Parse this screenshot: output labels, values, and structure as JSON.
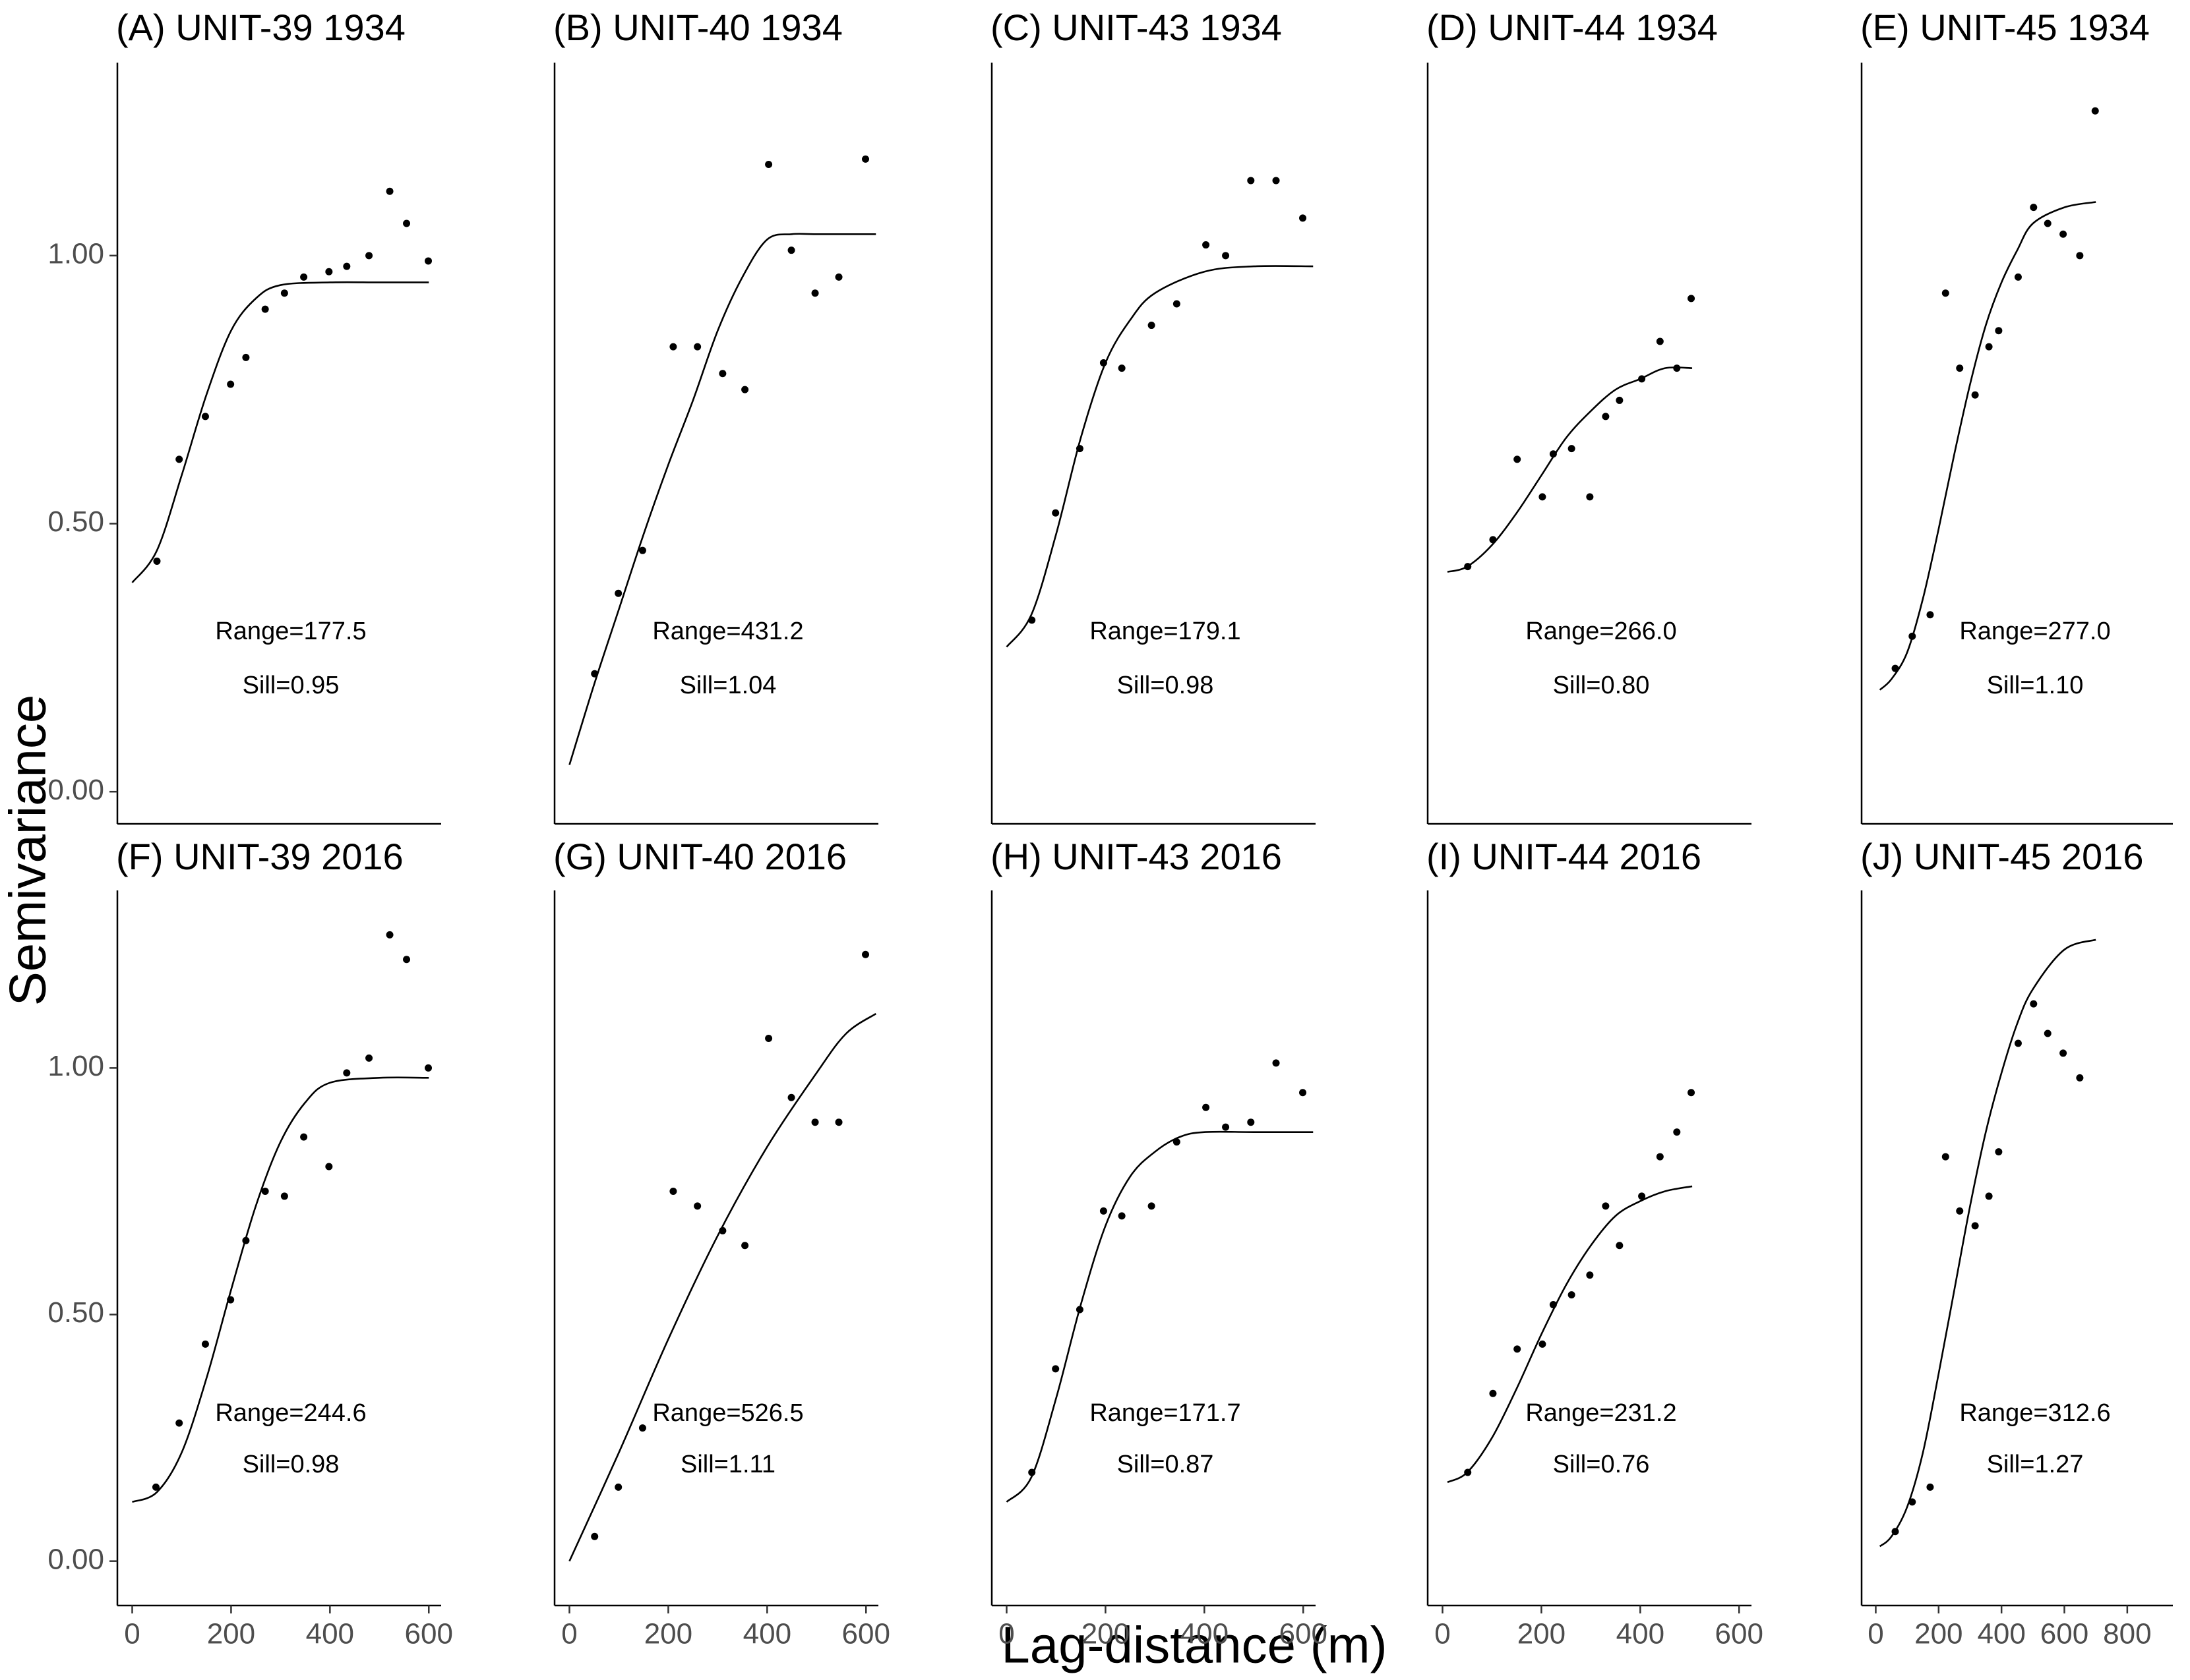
{
  "y_label": "Semivariance",
  "x_label": "Lag-distance (m)",
  "chart_data": [
    {
      "type": "scatter",
      "title": "(A) UNIT-39 1934",
      "annotations": [
        "Range=177.5",
        "Sill=0.95"
      ],
      "x": [
        50,
        95,
        148,
        199,
        230,
        269,
        308,
        347,
        398,
        434,
        479,
        521,
        555,
        599
      ],
      "values": [
        0.43,
        0.62,
        0.7,
        0.76,
        0.81,
        0.9,
        0.93,
        0.96,
        0.97,
        0.98,
        1.0,
        1.12,
        1.06,
        0.99
      ],
      "fit": {
        "x": [
          0,
          50,
          100,
          150,
          200,
          250,
          300,
          400,
          500,
          600
        ],
        "values": [
          0.39,
          0.45,
          0.59,
          0.74,
          0.86,
          0.92,
          0.945,
          0.95,
          0.95,
          0.95
        ]
      },
      "xlim": [
        -30,
        625
      ],
      "ylim": [
        -0.06,
        1.36
      ],
      "yticks": [
        {
          "value": 0,
          "label": "0.00"
        },
        {
          "value": 0.5,
          "label": "0.50"
        },
        {
          "value": 1,
          "label": "1.00"
        }
      ]
    },
    {
      "type": "scatter",
      "title": "(B) UNIT-40 1934",
      "annotations": [
        "Range=431.2",
        "Sill=1.04"
      ],
      "x": [
        51,
        99,
        148,
        210,
        259,
        310,
        355,
        403,
        449,
        497,
        545,
        599
      ],
      "values": [
        0.22,
        0.37,
        0.45,
        0.83,
        0.83,
        0.78,
        0.75,
        1.17,
        1.01,
        0.93,
        0.96,
        1.18
      ],
      "fit": {
        "x": [
          0,
          50,
          100,
          150,
          200,
          250,
          300,
          350,
          400,
          450,
          500,
          620
        ],
        "values": [
          0.05,
          0.2,
          0.34,
          0.48,
          0.61,
          0.73,
          0.86,
          0.96,
          1.03,
          1.04,
          1.04,
          1.04
        ]
      },
      "xlim": [
        -30,
        625
      ],
      "ylim": [
        -0.06,
        1.36
      ]
    },
    {
      "type": "scatter",
      "title": "(C) UNIT-43 1934",
      "annotations": [
        "Range=179.1",
        "Sill=0.98"
      ],
      "x": [
        51,
        99,
        148,
        196,
        233,
        293,
        344,
        403,
        443,
        494,
        545,
        599
      ],
      "values": [
        0.32,
        0.52,
        0.64,
        0.8,
        0.79,
        0.87,
        0.91,
        1.02,
        1.0,
        1.14,
        1.14,
        1.07
      ],
      "fit": {
        "x": [
          0,
          50,
          100,
          150,
          200,
          250,
          300,
          400,
          500,
          620
        ],
        "values": [
          0.27,
          0.33,
          0.48,
          0.66,
          0.8,
          0.88,
          0.93,
          0.97,
          0.98,
          0.98
        ]
      },
      "xlim": [
        -30,
        625
      ],
      "ylim": [
        -0.06,
        1.36
      ]
    },
    {
      "type": "scatter",
      "title": "(D) UNIT-44 1934",
      "annotations": [
        "Range=266.0",
        "Sill=0.80"
      ],
      "x": [
        51,
        102,
        151,
        202,
        224,
        261,
        298,
        330,
        358,
        403,
        440,
        474,
        503
      ],
      "values": [
        0.42,
        0.47,
        0.62,
        0.55,
        0.63,
        0.64,
        0.55,
        0.7,
        0.73,
        0.77,
        0.84,
        0.79,
        0.92
      ],
      "fit": {
        "x": [
          10,
          50,
          100,
          150,
          200,
          250,
          300,
          350,
          400,
          450,
          505
        ],
        "values": [
          0.41,
          0.42,
          0.46,
          0.52,
          0.59,
          0.66,
          0.71,
          0.75,
          0.77,
          0.79,
          0.79
        ]
      },
      "xlim": [
        -30,
        625
      ],
      "ylim": [
        -0.06,
        1.36
      ]
    },
    {
      "type": "scatter",
      "title": "(E) UNIT-45 1934",
      "annotations": [
        "Range=277.0",
        "Sill=1.10"
      ],
      "x": [
        62,
        116,
        173,
        222,
        267,
        316,
        360,
        391,
        453,
        502,
        547,
        596,
        649,
        698
      ],
      "values": [
        0.23,
        0.29,
        0.33,
        0.93,
        0.79,
        0.74,
        0.83,
        0.86,
        0.96,
        1.09,
        1.06,
        1.04,
        1.0,
        1.27
      ],
      "fit": {
        "x": [
          13,
          50,
          100,
          150,
          200,
          250,
          300,
          350,
          400,
          450,
          500,
          600,
          700
        ],
        "values": [
          0.19,
          0.21,
          0.26,
          0.36,
          0.49,
          0.63,
          0.76,
          0.87,
          0.95,
          1.01,
          1.06,
          1.09,
          1.1
        ]
      },
      "xlim": [
        -45,
        945
      ],
      "ylim": [
        -0.06,
        1.36
      ]
    },
    {
      "type": "scatter",
      "title": "(F) UNIT-39 2016",
      "annotations": [
        "Range=244.6",
        "Sill=0.98"
      ],
      "x": [
        48,
        95,
        148,
        199,
        230,
        269,
        308,
        347,
        398,
        434,
        479,
        521,
        555,
        599
      ],
      "values": [
        0.15,
        0.28,
        0.44,
        0.53,
        0.65,
        0.75,
        0.74,
        0.86,
        0.8,
        0.99,
        1.02,
        1.27,
        1.22,
        1.0
      ],
      "fit": {
        "x": [
          0,
          50,
          100,
          150,
          200,
          250,
          300,
          350,
          400,
          500,
          600
        ],
        "values": [
          0.12,
          0.14,
          0.22,
          0.37,
          0.55,
          0.72,
          0.85,
          0.93,
          0.97,
          0.98,
          0.98
        ]
      },
      "xlim": [
        -30,
        625
      ],
      "ylim": [
        -0.09,
        1.36
      ],
      "xticks": [
        0,
        200,
        400,
        600
      ],
      "yticks": [
        {
          "value": 0,
          "label": "0.00"
        },
        {
          "value": 0.5,
          "label": "0.50"
        },
        {
          "value": 1,
          "label": "1.00"
        }
      ]
    },
    {
      "type": "scatter",
      "title": "(G) UNIT-40 2016",
      "annotations": [
        "Range=526.5",
        "Sill=1.11"
      ],
      "x": [
        51,
        99,
        148,
        210,
        259,
        310,
        355,
        403,
        449,
        497,
        545,
        599
      ],
      "values": [
        0.05,
        0.15,
        0.27,
        0.75,
        0.72,
        0.67,
        0.64,
        1.06,
        0.94,
        0.89,
        0.89,
        1.23
      ],
      "fit": {
        "x": [
          0,
          100,
          200,
          300,
          400,
          500,
          560,
          620
        ],
        "values": [
          0.0,
          0.22,
          0.45,
          0.66,
          0.84,
          0.99,
          1.07,
          1.11
        ]
      },
      "xlim": [
        -30,
        625
      ],
      "ylim": [
        -0.09,
        1.36
      ],
      "xticks": [
        0,
        200,
        400,
        600
      ]
    },
    {
      "type": "scatter",
      "title": "(H) UNIT-43 2016",
      "annotations": [
        "Range=171.7",
        "Sill=0.87"
      ],
      "x": [
        51,
        99,
        148,
        196,
        233,
        293,
        344,
        403,
        443,
        494,
        545,
        599
      ],
      "values": [
        0.18,
        0.39,
        0.51,
        0.71,
        0.7,
        0.72,
        0.85,
        0.92,
        0.88,
        0.89,
        1.01,
        0.95
      ],
      "fit": {
        "x": [
          0,
          50,
          100,
          150,
          200,
          250,
          300,
          350,
          400,
          500,
          620
        ],
        "values": [
          0.12,
          0.17,
          0.33,
          0.52,
          0.68,
          0.78,
          0.83,
          0.86,
          0.87,
          0.87,
          0.87
        ]
      },
      "xlim": [
        -30,
        625
      ],
      "ylim": [
        -0.09,
        1.36
      ],
      "xticks": [
        0,
        200,
        400,
        600
      ]
    },
    {
      "type": "scatter",
      "title": "(I) UNIT-44 2016",
      "annotations": [
        "Range=231.2",
        "Sill=0.76"
      ],
      "x": [
        51,
        102,
        151,
        202,
        224,
        261,
        298,
        330,
        358,
        403,
        440,
        474,
        503
      ],
      "values": [
        0.18,
        0.34,
        0.43,
        0.44,
        0.52,
        0.54,
        0.58,
        0.72,
        0.64,
        0.74,
        0.82,
        0.87,
        0.95
      ],
      "fit": {
        "x": [
          10,
          50,
          100,
          150,
          200,
          250,
          300,
          350,
          400,
          450,
          505
        ],
        "values": [
          0.16,
          0.18,
          0.25,
          0.35,
          0.46,
          0.56,
          0.64,
          0.7,
          0.73,
          0.75,
          0.76
        ]
      },
      "xlim": [
        -30,
        625
      ],
      "ylim": [
        -0.09,
        1.36
      ],
      "xticks": [
        0,
        200,
        400,
        600
      ]
    },
    {
      "type": "scatter",
      "title": "(J) UNIT-45 2016",
      "annotations": [
        "Range=312.6",
        "Sill=1.27"
      ],
      "x": [
        62,
        116,
        173,
        222,
        267,
        316,
        360,
        391,
        453,
        502,
        547,
        596,
        649
      ],
      "values": [
        0.06,
        0.12,
        0.15,
        0.82,
        0.71,
        0.68,
        0.74,
        0.83,
        1.05,
        1.13,
        1.07,
        1.03,
        0.98
      ],
      "fit": {
        "x": [
          13,
          50,
          100,
          150,
          200,
          250,
          300,
          350,
          400,
          450,
          500,
          600,
          700
        ],
        "values": [
          0.03,
          0.05,
          0.11,
          0.22,
          0.38,
          0.55,
          0.72,
          0.87,
          0.99,
          1.09,
          1.16,
          1.24,
          1.26
        ]
      },
      "xlim": [
        -45,
        945
      ],
      "ylim": [
        -0.09,
        1.36
      ],
      "xticks": [
        0,
        200,
        400,
        600,
        800
      ]
    }
  ]
}
